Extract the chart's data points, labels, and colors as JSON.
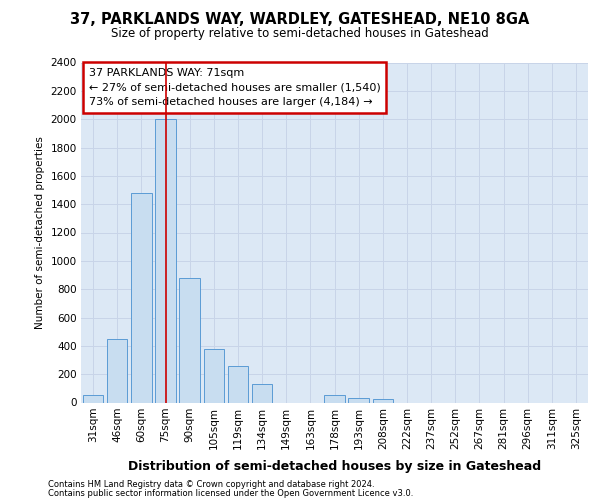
{
  "title_line1": "37, PARKLANDS WAY, WARDLEY, GATESHEAD, NE10 8GA",
  "title_line2": "Size of property relative to semi-detached houses in Gateshead",
  "xlabel": "Distribution of semi-detached houses by size in Gateshead",
  "ylabel": "Number of semi-detached properties",
  "categories": [
    "31sqm",
    "46sqm",
    "60sqm",
    "75sqm",
    "90sqm",
    "105sqm",
    "119sqm",
    "134sqm",
    "149sqm",
    "163sqm",
    "178sqm",
    "193sqm",
    "208sqm",
    "222sqm",
    "237sqm",
    "252sqm",
    "267sqm",
    "281sqm",
    "296sqm",
    "311sqm",
    "325sqm"
  ],
  "values": [
    50,
    450,
    1480,
    2000,
    880,
    375,
    255,
    130,
    0,
    0,
    55,
    35,
    25,
    0,
    0,
    0,
    0,
    0,
    0,
    0,
    0
  ],
  "bar_color": "#c8ddf0",
  "bar_edge_color": "#5b9bd5",
  "annotation_text": "37 PARKLANDS WAY: 71sqm\n← 27% of semi-detached houses are smaller (1,540)\n73% of semi-detached houses are larger (4,184) →",
  "annotation_box_color": "#ffffff",
  "annotation_box_edge_color": "#cc0000",
  "vline_color": "#cc0000",
  "grid_color": "#c8d4e8",
  "plot_background_color": "#dce8f5",
  "ylim": [
    0,
    2400
  ],
  "yticks": [
    0,
    200,
    400,
    600,
    800,
    1000,
    1200,
    1400,
    1600,
    1800,
    2000,
    2200,
    2400
  ],
  "footer_line1": "Contains HM Land Registry data © Crown copyright and database right 2024.",
  "footer_line2": "Contains public sector information licensed under the Open Government Licence v3.0.",
  "vline_pos": 3.0
}
